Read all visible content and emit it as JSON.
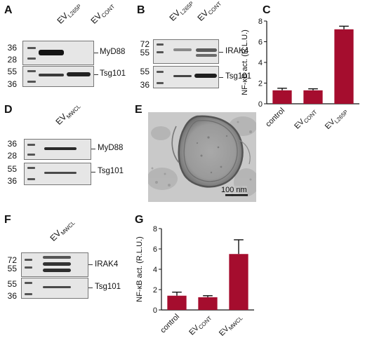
{
  "panels": {
    "A": {
      "letter": "A",
      "lanes": [
        {
          "main": "EV",
          "sub": "L265P"
        },
        {
          "main": "EV",
          "sub": "CONT"
        }
      ],
      "top": {
        "markers": [
          "36",
          "28"
        ],
        "label": "MyD88"
      },
      "bottom": {
        "markers": [
          "55",
          "36"
        ],
        "label": "Tsg101"
      }
    },
    "B": {
      "letter": "B",
      "lanes": [
        {
          "main": "EV",
          "sub": "L265P"
        },
        {
          "main": "EV",
          "sub": "CONT"
        }
      ],
      "top": {
        "markers": [
          "72",
          "55"
        ],
        "label": "IRAK4"
      },
      "bottom": {
        "markers": [
          "55",
          "36"
        ],
        "label": "Tsg101"
      }
    },
    "C": {
      "letter": "C"
    },
    "D": {
      "letter": "D",
      "lanes": [
        {
          "main": "EV",
          "sub": "MWCL"
        }
      ],
      "top": {
        "markers": [
          "36",
          "28"
        ],
        "label": "MyD88"
      },
      "bottom": {
        "markers": [
          "55",
          "36"
        ],
        "label": "Tsg101"
      }
    },
    "E": {
      "letter": "E",
      "scale_bar": "100 nm"
    },
    "F": {
      "letter": "F",
      "lanes": [
        {
          "main": "EV",
          "sub": "MWCL"
        }
      ],
      "top": {
        "markers": [
          "72",
          "55"
        ],
        "label": "IRAK4"
      },
      "bottom": {
        "markers": [
          "55",
          "36"
        ],
        "label": "Tsg101"
      }
    },
    "G": {
      "letter": "G"
    }
  },
  "chart_data": [
    {
      "type": "bar",
      "panel": "C",
      "categories": [
        {
          "main": "control",
          "sub": ""
        },
        {
          "main": "EV",
          "sub": "CONT"
        },
        {
          "main": "EV",
          "sub": "L265P"
        }
      ],
      "values": [
        1.3,
        1.3,
        7.2
      ],
      "errors": [
        0.2,
        0.15,
        0.3
      ],
      "ylabel": "NF-κB act. (R.L.U.)",
      "ylim": [
        0,
        8
      ],
      "yticks": [
        "0",
        "2",
        "4",
        "6",
        "8"
      ],
      "bar_color": "#a50d2e"
    },
    {
      "type": "bar",
      "panel": "G",
      "categories": [
        {
          "main": "control",
          "sub": ""
        },
        {
          "main": "EV",
          "sub": "CONT"
        },
        {
          "main": "EV",
          "sub": "MWCL"
        }
      ],
      "values": [
        1.4,
        1.25,
        5.5
      ],
      "errors": [
        0.35,
        0.15,
        1.4
      ],
      "ylabel": "NF-κB act. (R.L.U.)",
      "ylim": [
        0,
        8
      ],
      "yticks": [
        "0",
        "2",
        "4",
        "6",
        "8"
      ],
      "bar_color": "#a50d2e"
    }
  ]
}
